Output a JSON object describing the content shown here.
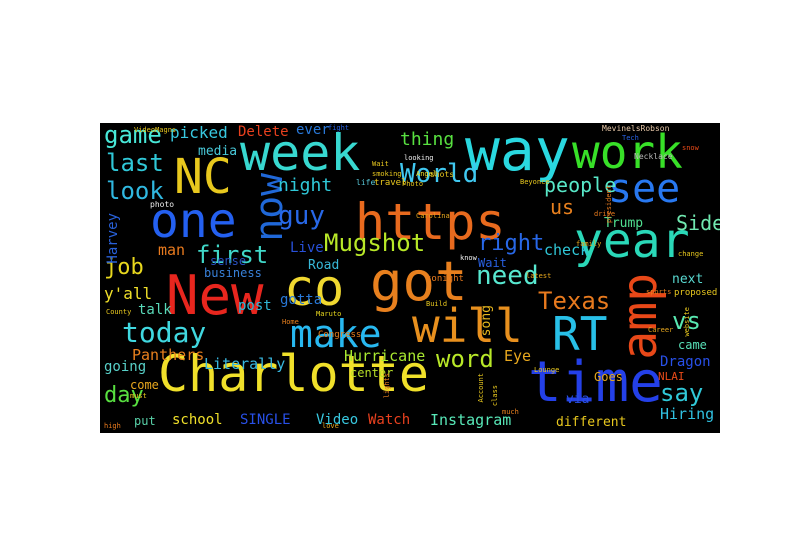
{
  "background": "#000000",
  "words": [
    {
      "text": "Charlotte",
      "color": "#f0e02a"
    },
    {
      "text": "https",
      "color": "#e86a1e"
    },
    {
      "text": "New",
      "color": "#e8261e"
    },
    {
      "text": "way",
      "color": "#2ad8e0"
    },
    {
      "text": "time",
      "color": "#2440e8"
    },
    {
      "text": "got",
      "color": "#e8801e"
    },
    {
      "text": "co",
      "color": "#f0d830"
    },
    {
      "text": "week",
      "color": "#38d8d0"
    },
    {
      "text": "NC",
      "color": "#e8c81e"
    },
    {
      "text": "one",
      "color": "#2460f0"
    },
    {
      "text": "year",
      "color": "#2ad8b8"
    },
    {
      "text": "work",
      "color": "#38e028"
    },
    {
      "text": "will",
      "color": "#e8901e"
    },
    {
      "text": "make",
      "color": "#28b8f0"
    },
    {
      "text": "amp",
      "color": "#e84818"
    },
    {
      "text": "RT",
      "color": "#28c0e8"
    },
    {
      "text": "see",
      "color": "#2878f0"
    },
    {
      "text": "now",
      "color": "#2068d8"
    },
    {
      "text": "today",
      "color": "#40d8e0"
    },
    {
      "text": "World",
      "color": "#40c8f0"
    },
    {
      "text": "guy",
      "color": "#2868e8"
    },
    {
      "text": "need",
      "color": "#58e8d0"
    },
    {
      "text": "game",
      "color": "#48e8d8"
    },
    {
      "text": "last",
      "color": "#30c8d8"
    },
    {
      "text": "look",
      "color": "#30b8e0"
    },
    {
      "text": "first",
      "color": "#40d8c8"
    },
    {
      "text": "Mugshot",
      "color": "#b8e828"
    },
    {
      "text": "Texas",
      "color": "#e87a1e"
    },
    {
      "text": "vs",
      "color": "#58e8b0"
    },
    {
      "text": "word",
      "color": "#b8e828"
    },
    {
      "text": "say",
      "color": "#30c8d8"
    },
    {
      "text": "job",
      "color": "#e8d81e"
    },
    {
      "text": "day",
      "color": "#58e040"
    },
    {
      "text": "right",
      "color": "#2868e8"
    },
    {
      "text": "people",
      "color": "#58e8c8"
    },
    {
      "text": "thing",
      "color": "#58e040"
    },
    {
      "text": "night",
      "color": "#30c8d8"
    },
    {
      "text": "us",
      "color": "#e8801e"
    },
    {
      "text": "picked",
      "color": "#38c8e0"
    },
    {
      "text": "Side",
      "color": "#70e8b0"
    },
    {
      "text": "Panthers",
      "color": "#e8801e"
    },
    {
      "text": "Literally",
      "color": "#38b8e0"
    },
    {
      "text": "Hurricane",
      "color": "#a8e830"
    },
    {
      "text": "Instagram",
      "color": "#58e8b8"
    },
    {
      "text": "Hiring",
      "color": "#30c0e0"
    },
    {
      "text": "check",
      "color": "#30c8d8"
    },
    {
      "text": "Trump",
      "color": "#50e090"
    },
    {
      "text": "Delete",
      "color": "#e8401e"
    },
    {
      "text": "ever",
      "color": "#2878d8"
    },
    {
      "text": "media",
      "color": "#48c8d8"
    },
    {
      "text": "Harvey",
      "color": "#2860d8"
    },
    {
      "text": "man",
      "color": "#e87a1e"
    },
    {
      "text": "y'all",
      "color": "#f0e02a"
    },
    {
      "text": "talk",
      "color": "#58d8b8"
    },
    {
      "text": "post",
      "color": "#30b8d8"
    },
    {
      "text": "gotta",
      "color": "#2878d8"
    },
    {
      "text": "Live",
      "color": "#2850d8"
    },
    {
      "text": "Road",
      "color": "#38b8d8"
    },
    {
      "text": "business",
      "color": "#3880d8"
    },
    {
      "text": "sense",
      "color": "#2850c0"
    },
    {
      "text": "going",
      "color": "#58d0c8"
    },
    {
      "text": "school",
      "color": "#f0e02a"
    },
    {
      "text": "SINGLE",
      "color": "#2850e8"
    },
    {
      "text": "Video",
      "color": "#38c8e0"
    },
    {
      "text": "Watch",
      "color": "#e8401e"
    },
    {
      "text": "different",
      "color": "#e8c81e"
    },
    {
      "text": "center",
      "color": "#b8e028"
    },
    {
      "text": "Eye",
      "color": "#e8a81e"
    },
    {
      "text": "Dragon",
      "color": "#2850e8"
    },
    {
      "text": "NLAI",
      "color": "#e84a18"
    },
    {
      "text": "Goes",
      "color": "#e8a81e"
    },
    {
      "text": "came",
      "color": "#58e0b8"
    },
    {
      "text": "next",
      "color": "#58d8d0"
    },
    {
      "text": "song",
      "color": "#e8b81e"
    },
    {
      "text": "via",
      "color": "#2850e8"
    },
    {
      "text": "come",
      "color": "#e8a81e"
    },
    {
      "text": "put",
      "color": "#58d0a8"
    },
    {
      "text": "Wait",
      "color": "#2860e0"
    },
    {
      "text": "tonight",
      "color": "#e87a1e"
    },
    {
      "text": "travel",
      "color": "#e8c81e"
    },
    {
      "text": "Congress",
      "color": "#e8801e"
    },
    {
      "text": "proposed",
      "color": "#e8c81e"
    },
    {
      "text": "Necklace",
      "color": "#b8b8b8"
    },
    {
      "text": "photo",
      "color": "#f0f0f0"
    },
    {
      "text": "MevinelsRobson",
      "color": "#e8c8a8"
    },
    {
      "text": "Carolina",
      "color": "#e8a81e"
    },
    {
      "text": "VideoMagns",
      "color": "#e8c81e"
    },
    {
      "text": "Maruto",
      "color": "#e8d81e"
    },
    {
      "text": "life",
      "color": "#58c8d8"
    },
    {
      "text": "drive",
      "color": "#e87a1e"
    },
    {
      "text": "shots",
      "color": "#e8c81e"
    },
    {
      "text": "must",
      "color": "#e8c81e"
    },
    {
      "text": "high",
      "color": "#e87a1e"
    },
    {
      "text": "love",
      "color": "#e8a81e"
    },
    {
      "text": "County",
      "color": "#e8c81e"
    },
    {
      "text": "lights",
      "color": "#e8801e"
    },
    {
      "text": "Tech",
      "color": "#2860e0"
    },
    {
      "text": "president",
      "color": "#e87a1e"
    },
    {
      "text": "snow",
      "color": "#e84a18"
    },
    {
      "text": "website",
      "color": "#e8c81e"
    },
    {
      "text": "know",
      "color": "#f0f0f0"
    },
    {
      "text": "latest",
      "color": "#e8a81e"
    },
    {
      "text": "class",
      "color": "#e8c81e"
    },
    {
      "text": "Account",
      "color": "#e8c81e"
    },
    {
      "text": "much",
      "color": "#e8801e"
    },
    {
      "text": "Lounge",
      "color": "#e8c81e"
    },
    {
      "text": "looking",
      "color": "#f0f0f0"
    },
    {
      "text": "Beyonce",
      "color": "#e8c81e"
    },
    {
      "text": "family",
      "color": "#e8a81e"
    },
    {
      "text": "smoking",
      "color": "#e8c81e"
    },
    {
      "text": "sports",
      "color": "#e8801e"
    },
    {
      "text": "Home",
      "color": "#e8801e"
    },
    {
      "text": "Build",
      "color": "#e8c81e"
    },
    {
      "text": "change",
      "color": "#e8c81e"
    },
    {
      "text": "Career",
      "color": "#e8a81e"
    },
    {
      "text": "fight",
      "color": "#2860e0"
    },
    {
      "text": "Angel",
      "color": "#f0e02a"
    },
    {
      "text": "Photo",
      "color": "#e8c81e"
    },
    {
      "text": "Wait",
      "color": "#e8c81e"
    }
  ]
}
